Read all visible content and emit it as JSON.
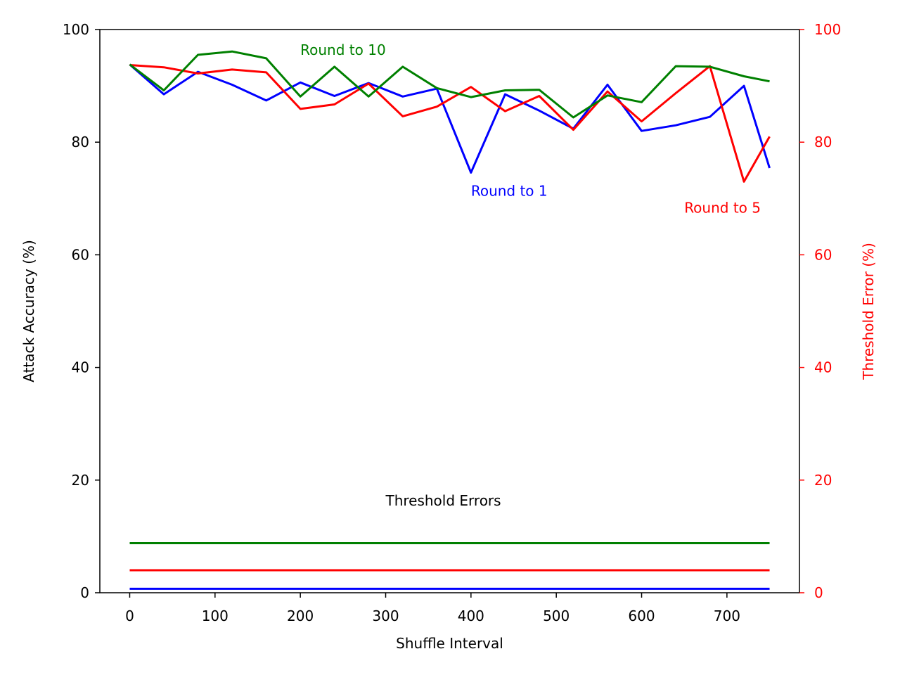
{
  "chart_data": {
    "type": "line",
    "xlabel": "Shuffle Interval",
    "ylabel": "Attack Accuracy (%)",
    "y2label": "Threshold Error (%)",
    "xlim": [
      -35,
      785
    ],
    "ylim": [
      0,
      100
    ],
    "y2lim": [
      0,
      100
    ],
    "xticks": [
      0,
      100,
      200,
      300,
      400,
      500,
      600,
      700
    ],
    "yticks": [
      0,
      20,
      40,
      60,
      80,
      100
    ],
    "y2ticks": [
      0,
      20,
      40,
      60,
      80,
      100
    ],
    "grid": false,
    "colors": {
      "axis": "#000000",
      "right_axis": "#ff0000"
    },
    "x": [
      0,
      40,
      80,
      120,
      160,
      200,
      240,
      280,
      320,
      360,
      400,
      440,
      480,
      520,
      560,
      600,
      640,
      680,
      720,
      750
    ],
    "series": [
      {
        "key": "round1",
        "color": "#0000ff",
        "values": [
          93.8,
          88.5,
          92.5,
          90.2,
          87.4,
          90.6,
          88.2,
          90.5,
          88.1,
          89.5,
          74.6,
          88.5,
          85.6,
          82.4,
          90.2,
          82.0,
          83.0,
          84.5,
          90.0,
          75.4
        ]
      },
      {
        "key": "round5",
        "color": "#ff0000",
        "values": [
          93.7,
          93.3,
          92.2,
          92.9,
          92.4,
          85.9,
          86.7,
          90.4,
          84.6,
          86.3,
          89.8,
          85.5,
          88.2,
          82.2,
          89.0,
          83.7,
          88.7,
          93.5,
          73.0,
          81.0
        ]
      },
      {
        "key": "round10",
        "color": "#008000",
        "values": [
          93.8,
          89.2,
          95.5,
          96.1,
          94.9,
          88.1,
          93.4,
          88.1,
          93.4,
          89.6,
          88.0,
          89.2,
          89.3,
          84.4,
          88.3,
          87.1,
          93.5,
          93.4,
          91.7,
          90.8
        ]
      }
    ],
    "threshold_series": [
      {
        "key": "round10",
        "color": "#008000",
        "value": 8.8
      },
      {
        "key": "round5",
        "color": "#ff0000",
        "value": 4.0
      },
      {
        "key": "round1",
        "color": "#0000ff",
        "value": 0.7
      }
    ],
    "threshold_x": [
      0,
      750
    ],
    "annotations": [
      {
        "key": "label_round10",
        "text": "Round to 10",
        "x": 200,
        "y": 95.5,
        "color": "#008000"
      },
      {
        "key": "label_round1",
        "text": "Round to 1",
        "x": 400,
        "y": 70.5,
        "color": "#0000ff"
      },
      {
        "key": "label_round5",
        "text": "Round to 5",
        "x": 650,
        "y": 67.5,
        "color": "#ff0000"
      },
      {
        "key": "label_threshold",
        "text": "Threshold Errors",
        "x": 300,
        "y": 15.5,
        "color": "#000000"
      }
    ]
  }
}
